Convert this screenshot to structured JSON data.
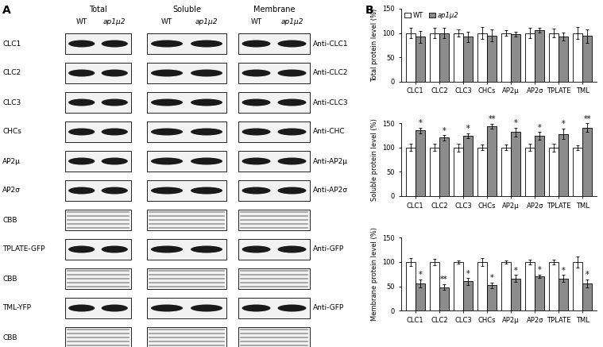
{
  "panel_labels": [
    "A",
    "B"
  ],
  "blot": {
    "columns": [
      {
        "title": "Total",
        "lanes": [
          "WT",
          "ap1μ2"
        ]
      },
      {
        "title": "Soluble",
        "lanes": [
          "WT",
          "ap1μ2"
        ]
      },
      {
        "title": "Membrane",
        "lanes": [
          "WT",
          "ap1μ2"
        ]
      }
    ],
    "rows": [
      {
        "left": "CLC1",
        "right": "Anti-CLC1"
      },
      {
        "left": "CLC2",
        "right": "Anti-CLC2"
      },
      {
        "left": "CLC3",
        "right": "Anti-CLC3"
      },
      {
        "left": "CHCs",
        "right": "Anti-CHC"
      },
      {
        "left": "AP2μ",
        "right": "Anti-AP2μ"
      },
      {
        "left": "AP2σ",
        "right": "Anti-AP2σ"
      },
      {
        "left": "CBB"
      },
      {
        "left": "TPLATE-GFP",
        "right": "Anti-GFP"
      },
      {
        "left": "CBB"
      },
      {
        "left": "TML-YFP",
        "right": "Anti-GFP"
      },
      {
        "left": "CBB"
      }
    ]
  },
  "chart_data": [
    {
      "type": "bar",
      "y_label": "Total protein level (%)",
      "categories": [
        "CLC1",
        "CLC2",
        "CLC3",
        "CHCs",
        "AP2μ",
        "AP2σ",
        "TPLATE",
        "TML"
      ],
      "ylim": [
        0,
        150
      ],
      "yticks": [
        0,
        50,
        100,
        150
      ],
      "legend": "upper left",
      "series": [
        {
          "name": "WT",
          "color": "#ffffff",
          "values": [
            100,
            100,
            100,
            100,
            100,
            100,
            100,
            100
          ],
          "errors": [
            10,
            10,
            8,
            12,
            5,
            10,
            9,
            12
          ]
        },
        {
          "name": "ap1μ2",
          "color": "#8c8c8c",
          "values": [
            92,
            100,
            92,
            95,
            97,
            106,
            93,
            94
          ],
          "errors": [
            12,
            10,
            10,
            12,
            5,
            5,
            8,
            14
          ]
        }
      ]
    },
    {
      "type": "bar",
      "y_label": "Soluble protein level (%)",
      "categories": [
        "CLC1",
        "CLC2",
        "CLC3",
        "CHCs",
        "AP2μ",
        "AP2σ",
        "TPLATE",
        "TML"
      ],
      "ylim": [
        0,
        150
      ],
      "yticks": [
        0,
        50,
        100,
        150
      ],
      "series": [
        {
          "name": "WT",
          "color": "#ffffff",
          "values": [
            100,
            100,
            100,
            100,
            100,
            100,
            100,
            100
          ],
          "errors": [
            7,
            7,
            8,
            6,
            6,
            7,
            8,
            5
          ]
        },
        {
          "name": "ap1μ2",
          "color": "#8c8c8c",
          "values": [
            135,
            120,
            124,
            144,
            132,
            124,
            128,
            141
          ],
          "errors": [
            6,
            5,
            5,
            5,
            9,
            8,
            11,
            9
          ],
          "annotations": [
            "*",
            "*",
            "*",
            "**",
            "*",
            "*",
            "*",
            "**"
          ]
        }
      ]
    },
    {
      "type": "bar",
      "y_label": "Membrane protein level (%)",
      "categories": [
        "CLC1",
        "CLC2",
        "CLC3",
        "CHCs",
        "AP2μ",
        "AP2σ",
        "TPLATE",
        "TML"
      ],
      "ylim": [
        0,
        150
      ],
      "yticks": [
        0,
        50,
        100,
        150
      ],
      "series": [
        {
          "name": "WT",
          "color": "#ffffff",
          "values": [
            100,
            100,
            100,
            100,
            100,
            100,
            100,
            100
          ],
          "errors": [
            8,
            6,
            3,
            8,
            3,
            5,
            5,
            12
          ]
        },
        {
          "name": "ap1μ2",
          "color": "#8c8c8c",
          "values": [
            56,
            48,
            60,
            52,
            66,
            71,
            66,
            56
          ],
          "errors": [
            8,
            6,
            7,
            6,
            7,
            3,
            7,
            8
          ],
          "annotations": [
            "*",
            "**",
            "*",
            "*",
            "*",
            "*",
            "*",
            "*"
          ]
        }
      ]
    }
  ]
}
